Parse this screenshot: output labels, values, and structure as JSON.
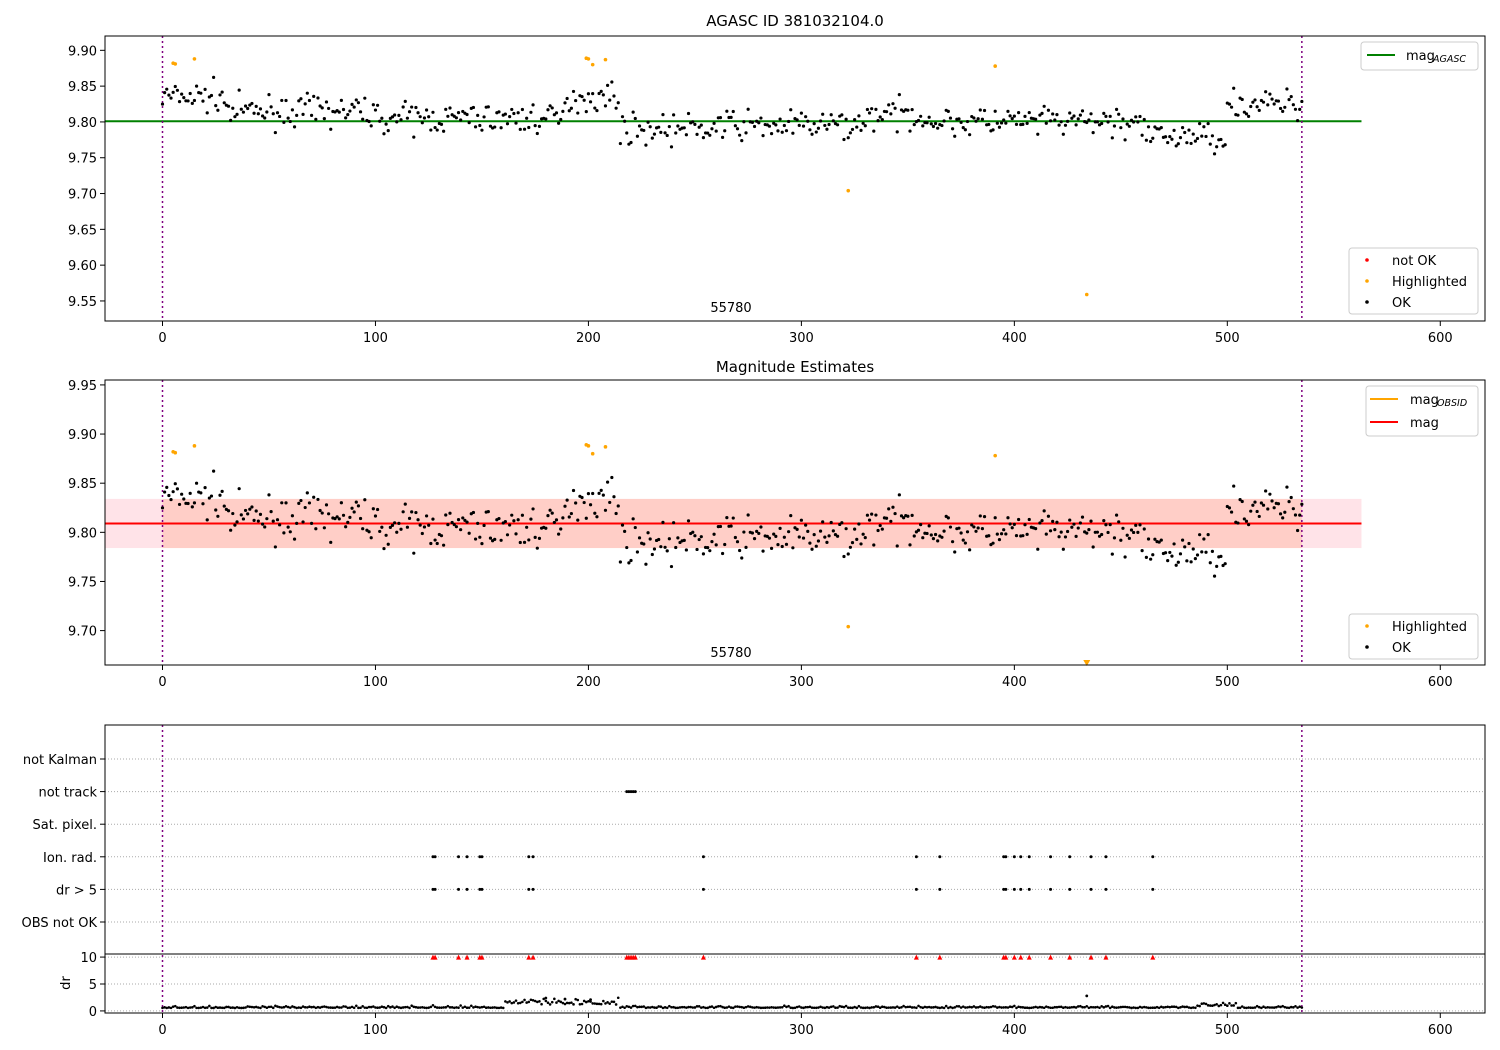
{
  "chart_data": [
    {
      "type": "scatter",
      "title": "AGASC ID 381032104.0",
      "annotation": "55780",
      "xlim": [
        -27,
        621
      ],
      "ylim": [
        9.522,
        9.92
      ],
      "x_ticks": [
        0,
        100,
        200,
        300,
        400,
        500,
        600
      ],
      "y_ticks": [
        9.55,
        9.6,
        9.65,
        9.7,
        9.75,
        9.8,
        9.85,
        9.9
      ],
      "y_tick_labels": [
        "9.55",
        "9.60",
        "9.65",
        "9.70",
        "9.75",
        "9.80",
        "9.85",
        "9.90"
      ],
      "vlines": [
        0,
        535
      ],
      "hline": {
        "name": "mag_AGASC",
        "value": 9.801,
        "x_range": [
          -27,
          563
        ],
        "color": "#008000"
      },
      "legend_upper": [
        {
          "label": "mag",
          "sub": "AGASC",
          "color": "#008000",
          "kind": "line"
        }
      ],
      "legend_lower": [
        {
          "label": "not OK",
          "color": "#ff0000",
          "kind": "dot"
        },
        {
          "label": "Highlighted",
          "color": "#ffa500",
          "kind": "dot"
        },
        {
          "label": "OK",
          "color": "#000000",
          "kind": "dot"
        }
      ],
      "series_ok": {
        "n": 535,
        "mean": 9.805,
        "note": "dense band of black points"
      },
      "highlighted": [
        [
          5,
          9.882
        ],
        [
          6,
          9.881
        ],
        [
          15,
          9.888
        ],
        [
          199,
          9.889
        ],
        [
          200,
          9.888
        ],
        [
          202,
          9.88
        ],
        [
          208,
          9.887
        ],
        [
          322,
          9.704
        ],
        [
          391,
          9.878
        ],
        [
          434,
          9.559
        ]
      ]
    },
    {
      "type": "scatter",
      "title": "Magnitude Estimates",
      "annotation": "55780",
      "xlim": [
        -27,
        621
      ],
      "ylim": [
        9.665,
        9.955
      ],
      "x_ticks": [
        0,
        100,
        200,
        300,
        400,
        500,
        600
      ],
      "y_ticks": [
        9.7,
        9.75,
        9.8,
        9.85,
        9.9,
        9.95
      ],
      "y_tick_labels": [
        "9.70",
        "9.75",
        "9.80",
        "9.85",
        "9.90",
        "9.95"
      ],
      "vlines": [
        0,
        535
      ],
      "hlines": [
        {
          "name": "mag_OBSID",
          "value": 9.809,
          "color": "#ffa500"
        },
        {
          "name": "mag",
          "value": 9.809,
          "color": "#ff0000"
        }
      ],
      "bands": [
        {
          "low": 9.784,
          "high": 9.834,
          "color": "#ffc0cb"
        },
        {
          "low": 9.784,
          "high": 9.834,
          "color": "#ffa07a"
        }
      ],
      "legend_upper": [
        {
          "label": "mag",
          "sub": "OBSID",
          "color": "#ffa500",
          "kind": "line"
        },
        {
          "label": "mag",
          "sub": "",
          "color": "#ff0000",
          "kind": "line"
        }
      ],
      "legend_lower": [
        {
          "label": "Highlighted",
          "color": "#ffa500",
          "kind": "dot"
        },
        {
          "label": "OK",
          "color": "#000000",
          "kind": "dot"
        }
      ],
      "highlighted": [
        [
          5,
          9.882
        ],
        [
          6,
          9.881
        ],
        [
          15,
          9.888
        ],
        [
          199,
          9.889
        ],
        [
          200,
          9.888
        ],
        [
          202,
          9.88
        ],
        [
          208,
          9.887
        ],
        [
          322,
          9.704
        ],
        [
          391,
          9.878
        ]
      ],
      "offscale_marker": [
        434,
        9.667
      ]
    },
    {
      "type": "scatter",
      "title": "",
      "xlim": [
        -27,
        621
      ],
      "x_ticks": [
        0,
        100,
        200,
        300,
        400,
        500,
        600
      ],
      "vlines": [
        0,
        535
      ],
      "flag_rows": [
        "not Kalman",
        "not track",
        "Sat. pixel.",
        "Ion. rad.",
        "dr > 5",
        "OBS not OK"
      ],
      "flags": {
        "not track": [
          218,
          219,
          220,
          221,
          222
        ],
        "Ion. rad.": [
          127,
          128,
          139,
          143,
          149,
          150,
          172,
          174,
          254,
          354,
          365,
          395,
          396,
          400,
          403,
          407,
          417,
          426,
          436,
          443,
          465
        ],
        "dr > 5": [
          127,
          128,
          139,
          143,
          149,
          150,
          172,
          174,
          254,
          354,
          365,
          395,
          396,
          400,
          403,
          407,
          417,
          426,
          436,
          443,
          465
        ]
      },
      "dr": {
        "ylabel": "dr",
        "ylim": [
          -0.2,
          10.2
        ],
        "y_ticks": [
          0,
          5,
          10
        ],
        "red_marker_x": [
          127,
          128,
          139,
          143,
          149,
          150,
          172,
          174,
          218,
          219,
          220,
          221,
          222,
          254,
          354,
          365,
          395,
          396,
          400,
          403,
          407,
          417,
          426,
          436,
          443,
          465
        ],
        "red_marker_value": 10,
        "outliers": [
          [
            434,
            2.8
          ],
          [
            180,
            2.4
          ],
          [
            189,
            2.2
          ],
          [
            201,
            2.1
          ]
        ]
      }
    }
  ]
}
